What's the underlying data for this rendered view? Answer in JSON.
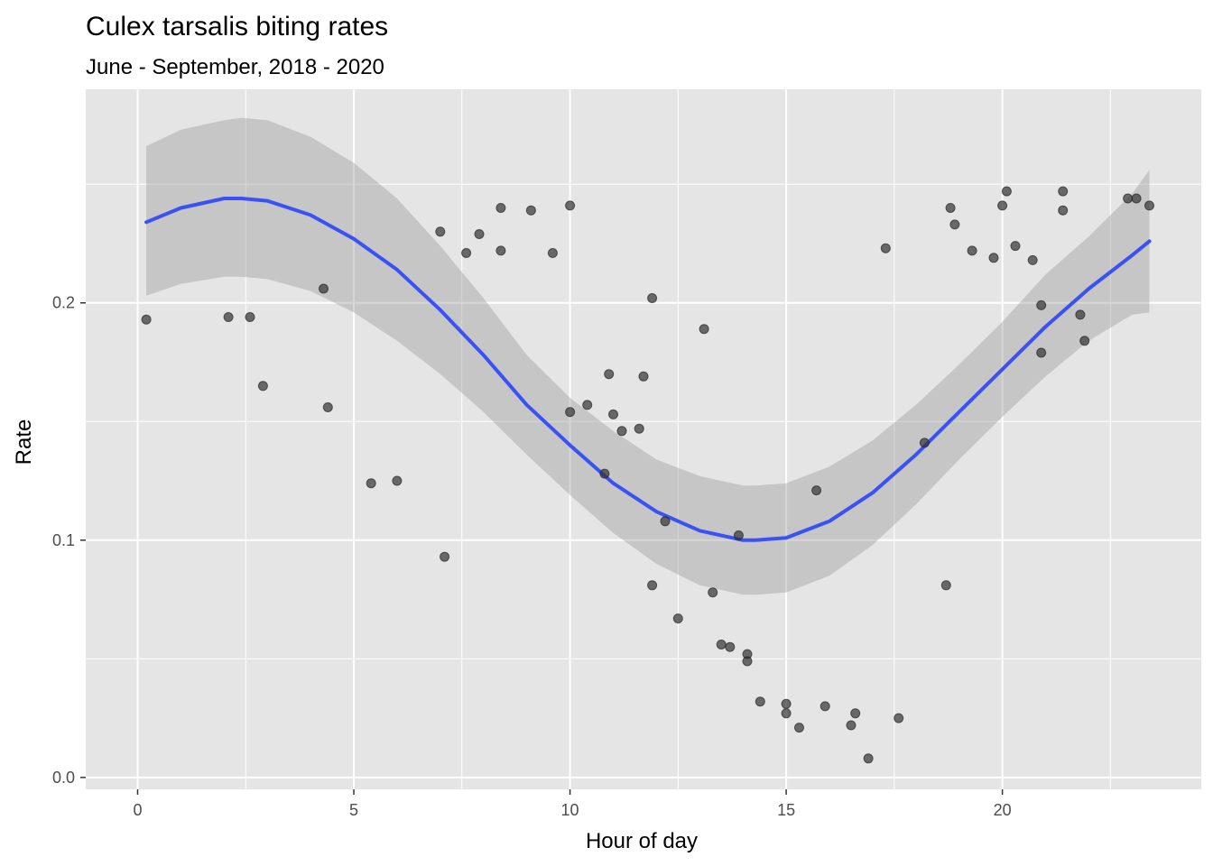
{
  "chart_data": {
    "type": "scatter",
    "title": "Culex tarsalis biting rates",
    "subtitle": "June - September, 2018 - 2020",
    "xlabel": "Hour of day",
    "ylabel": "Rate",
    "xlim": [
      -1.2,
      24.6
    ],
    "ylim": [
      -0.005,
      0.29
    ],
    "xticks": [
      0,
      5,
      10,
      15,
      20
    ],
    "xtick_labels": [
      "0",
      "5",
      "10",
      "15",
      "20"
    ],
    "yticks": [
      0.0,
      0.1,
      0.2
    ],
    "ytick_labels": [
      "0.0",
      "0.1",
      "0.2"
    ],
    "grid": true,
    "colors": {
      "panel": "#e5e5e5",
      "grid": "#ffffff",
      "points": "#333333",
      "smooth_line": "#3a52f5",
      "ribbon": "#bdbdbd"
    },
    "points": [
      [
        0.2,
        0.193
      ],
      [
        2.1,
        0.194
      ],
      [
        2.6,
        0.194
      ],
      [
        2.9,
        0.165
      ],
      [
        4.3,
        0.206
      ],
      [
        4.4,
        0.156
      ],
      [
        5.4,
        0.124
      ],
      [
        6.0,
        0.125
      ],
      [
        7.0,
        0.23
      ],
      [
        7.1,
        0.093
      ],
      [
        7.6,
        0.221
      ],
      [
        7.9,
        0.229
      ],
      [
        8.4,
        0.24
      ],
      [
        8.4,
        0.222
      ],
      [
        9.1,
        0.239
      ],
      [
        9.6,
        0.221
      ],
      [
        10.0,
        0.241
      ],
      [
        10.0,
        0.154
      ],
      [
        10.4,
        0.157
      ],
      [
        10.8,
        0.128
      ],
      [
        10.9,
        0.17
      ],
      [
        11.0,
        0.153
      ],
      [
        11.2,
        0.146
      ],
      [
        11.6,
        0.147
      ],
      [
        11.7,
        0.169
      ],
      [
        11.9,
        0.202
      ],
      [
        11.9,
        0.081
      ],
      [
        12.2,
        0.108
      ],
      [
        12.5,
        0.067
      ],
      [
        13.1,
        0.189
      ],
      [
        13.3,
        0.078
      ],
      [
        13.5,
        0.056
      ],
      [
        13.7,
        0.055
      ],
      [
        13.9,
        0.102
      ],
      [
        14.1,
        0.052
      ],
      [
        14.1,
        0.049
      ],
      [
        14.4,
        0.032
      ],
      [
        15.0,
        0.031
      ],
      [
        15.0,
        0.027
      ],
      [
        15.3,
        0.021
      ],
      [
        15.7,
        0.121
      ],
      [
        15.9,
        0.03
      ],
      [
        16.5,
        0.022
      ],
      [
        16.6,
        0.027
      ],
      [
        16.9,
        0.008
      ],
      [
        17.3,
        0.223
      ],
      [
        17.6,
        0.025
      ],
      [
        18.2,
        0.141
      ],
      [
        18.7,
        0.081
      ],
      [
        18.8,
        0.24
      ],
      [
        18.9,
        0.233
      ],
      [
        19.3,
        0.222
      ],
      [
        19.8,
        0.219
      ],
      [
        20.0,
        0.241
      ],
      [
        20.1,
        0.247
      ],
      [
        20.3,
        0.224
      ],
      [
        20.7,
        0.218
      ],
      [
        20.9,
        0.199
      ],
      [
        20.9,
        0.179
      ],
      [
        21.4,
        0.247
      ],
      [
        21.4,
        0.239
      ],
      [
        21.8,
        0.195
      ],
      [
        21.9,
        0.184
      ],
      [
        22.9,
        0.244
      ],
      [
        23.1,
        0.244
      ],
      [
        23.4,
        0.241
      ]
    ],
    "smooth": {
      "x": [
        0.2,
        1.0,
        2.0,
        2.4,
        3.0,
        4.0,
        5.0,
        6.0,
        7.0,
        8.0,
        9.0,
        10.0,
        11.0,
        12.0,
        13.0,
        14.0,
        14.3,
        15.0,
        16.0,
        17.0,
        18.0,
        19.0,
        20.0,
        21.0,
        22.0,
        23.0,
        23.4
      ],
      "y": [
        0.234,
        0.24,
        0.244,
        0.244,
        0.243,
        0.237,
        0.227,
        0.214,
        0.197,
        0.178,
        0.157,
        0.14,
        0.124,
        0.112,
        0.104,
        0.1,
        0.1,
        0.101,
        0.108,
        0.12,
        0.136,
        0.154,
        0.172,
        0.19,
        0.206,
        0.22,
        0.226
      ],
      "lower": [
        0.203,
        0.208,
        0.211,
        0.211,
        0.21,
        0.205,
        0.196,
        0.184,
        0.17,
        0.154,
        0.136,
        0.119,
        0.103,
        0.09,
        0.081,
        0.077,
        0.077,
        0.078,
        0.085,
        0.098,
        0.115,
        0.134,
        0.152,
        0.169,
        0.184,
        0.195,
        0.196
      ],
      "upper": [
        0.266,
        0.273,
        0.277,
        0.278,
        0.277,
        0.27,
        0.259,
        0.244,
        0.224,
        0.202,
        0.178,
        0.16,
        0.146,
        0.134,
        0.127,
        0.123,
        0.123,
        0.124,
        0.131,
        0.142,
        0.157,
        0.174,
        0.192,
        0.212,
        0.228,
        0.246,
        0.256
      ]
    }
  }
}
